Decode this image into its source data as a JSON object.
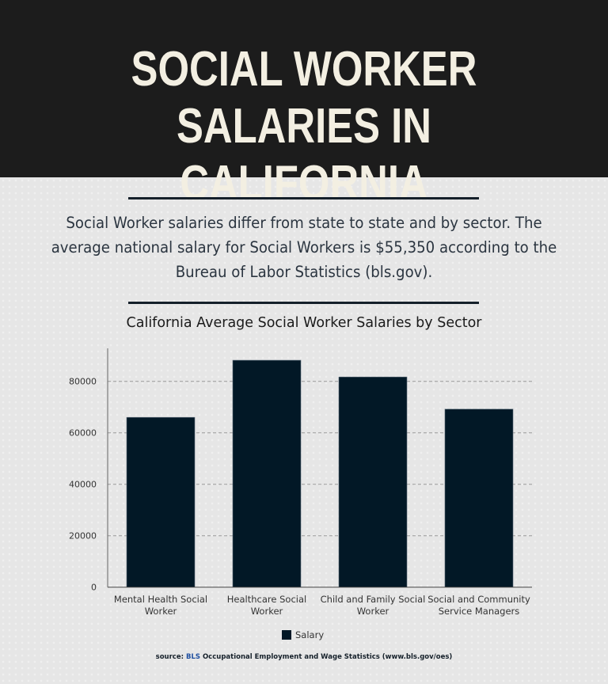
{
  "header": {
    "title_line1": "SOCIAL WORKER SALARIES IN",
    "title_line2": "CALIFORNIA"
  },
  "intro": "Social Worker salaries differ from state to state and by sector. The average national salary for Social Workers is $55,350 according to the Bureau of Labor Statistics (bls.gov).",
  "chart_data": {
    "type": "bar",
    "title": "California Average Social Worker Salaries by Sector",
    "categories": [
      [
        "Mental Health Social",
        "Worker"
      ],
      [
        "Healthcare Social",
        "Worker"
      ],
      [
        "Child and Family Social",
        "Worker"
      ],
      [
        "Social and Community",
        "Service Managers"
      ]
    ],
    "series": [
      {
        "name": "Salary",
        "values": [
          66000,
          88200,
          81700,
          69200
        ]
      }
    ],
    "ylim": [
      0,
      92000
    ],
    "yticks": [
      0,
      20000,
      40000,
      60000,
      80000
    ],
    "grid": true,
    "legend": "bottom",
    "colors": {
      "bar": "#021826"
    }
  },
  "source": {
    "prefix": "source: ",
    "org": "BLS",
    "rest": " Occupational Employment and Wage Statistics (www.bls.gov/oes)"
  }
}
